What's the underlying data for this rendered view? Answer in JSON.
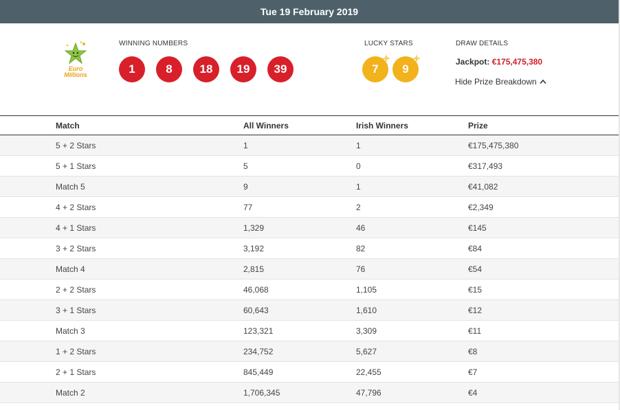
{
  "header": {
    "date": "Tue 19 February 2019"
  },
  "logo": {
    "line1": "Euro",
    "line2": "Millions"
  },
  "winning": {
    "label": "WINNING NUMBERS",
    "numbers": [
      "1",
      "8",
      "18",
      "19",
      "39"
    ]
  },
  "lucky": {
    "label": "LUCKY STARS",
    "stars": [
      "7",
      "9"
    ]
  },
  "draw": {
    "label": "DRAW DETAILS",
    "jackpot_label": "Jackpot:",
    "jackpot_value": "€175,475,380",
    "hide_link": "Hide Prize Breakdown"
  },
  "colors": {
    "header_bg": "#4e616b",
    "ball": "#d8202a",
    "star": "#f2b21b",
    "jackpot": "#cc2229"
  },
  "table": {
    "headers": [
      "Match",
      "All Winners",
      "Irish Winners",
      "Prize"
    ],
    "rows": [
      [
        "5 + 2 Stars",
        "1",
        "1",
        "€175,475,380"
      ],
      [
        "5 + 1 Stars",
        "5",
        "0",
        "€317,493"
      ],
      [
        "Match 5",
        "9",
        "1",
        "€41,082"
      ],
      [
        "4 + 2 Stars",
        "77",
        "2",
        "€2,349"
      ],
      [
        "4 + 1 Stars",
        "1,329",
        "46",
        "€145"
      ],
      [
        "3 + 2 Stars",
        "3,192",
        "82",
        "€84"
      ],
      [
        "Match 4",
        "2,815",
        "76",
        "€54"
      ],
      [
        "2 + 2 Stars",
        "46,068",
        "1,105",
        "€15"
      ],
      [
        "3 + 1 Stars",
        "60,643",
        "1,610",
        "€12"
      ],
      [
        "Match 3",
        "123,321",
        "3,309",
        "€11"
      ],
      [
        "1 + 2 Stars",
        "234,752",
        "5,627",
        "€8"
      ],
      [
        "2 + 1 Stars",
        "845,449",
        "22,455",
        "€7"
      ],
      [
        "Match 2",
        "1,706,345",
        "47,796",
        "€4"
      ]
    ]
  }
}
